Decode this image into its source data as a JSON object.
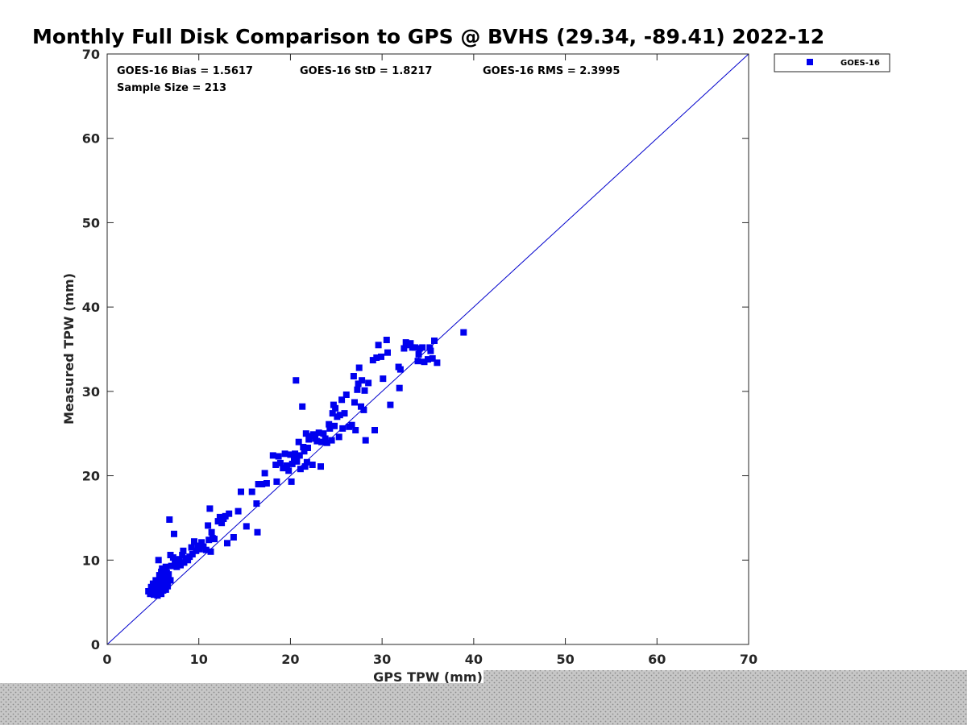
{
  "chart_data": {
    "type": "scatter",
    "title": "Monthly Full Disk Comparison to GPS @ BVHS (29.34, -89.41) 2022-12",
    "xlabel": "GPS TPW (mm)",
    "ylabel": "Measured TPW (mm)",
    "xlim": [
      0,
      70
    ],
    "ylim": [
      0,
      70
    ],
    "x_ticks": [
      "0",
      "10",
      "20",
      "30",
      "40",
      "50",
      "60",
      "70"
    ],
    "y_ticks": [
      "0",
      "10",
      "20",
      "30",
      "40",
      "50",
      "60",
      "70"
    ],
    "grid": false,
    "legend": {
      "placement": "top-right-outside",
      "entries": [
        "GOES-16"
      ]
    },
    "stats": {
      "bias": "GOES-16 Bias = 1.5617",
      "std": "GOES-16 StD = 1.8217",
      "rms": "GOES-16 RMS = 2.3995",
      "sample_size": "Sample Size = 213"
    },
    "reference_line": {
      "from": [
        0,
        0
      ],
      "to": [
        70,
        70
      ]
    },
    "colors": {
      "series": "#0000ee",
      "reference_line": "#0000cc",
      "axes": "#262626"
    },
    "series": [
      {
        "name": "GOES-16",
        "points": [
          [
            4.5,
            6.3
          ],
          [
            4.7,
            6.0
          ],
          [
            4.8,
            6.8
          ],
          [
            4.9,
            6.5
          ],
          [
            5.0,
            7.2
          ],
          [
            5.1,
            5.9
          ],
          [
            5.2,
            6.4
          ],
          [
            5.3,
            7.6
          ],
          [
            5.3,
            6.1
          ],
          [
            5.4,
            6.8
          ],
          [
            5.5,
            7.0
          ],
          [
            5.5,
            5.8
          ],
          [
            5.6,
            10.0
          ],
          [
            5.6,
            6.2
          ],
          [
            5.7,
            7.4
          ],
          [
            5.7,
            8.2
          ],
          [
            5.8,
            6.6
          ],
          [
            5.8,
            7.9
          ],
          [
            5.9,
            8.6
          ],
          [
            5.9,
            6.0
          ],
          [
            6.0,
            7.1
          ],
          [
            6.0,
            9.0
          ],
          [
            6.1,
            6.4
          ],
          [
            6.1,
            8.0
          ],
          [
            6.2,
            7.6
          ],
          [
            6.2,
            6.8
          ],
          [
            6.3,
            8.8
          ],
          [
            6.3,
            7.3
          ],
          [
            6.4,
            6.5
          ],
          [
            6.4,
            9.2
          ],
          [
            6.5,
            7.9
          ],
          [
            6.5,
            8.5
          ],
          [
            6.6,
            6.9
          ],
          [
            6.6,
            7.5
          ],
          [
            6.7,
            8.3
          ],
          [
            6.8,
            14.8
          ],
          [
            6.9,
            10.6
          ],
          [
            6.9,
            7.6
          ],
          [
            7.0,
            9.3
          ],
          [
            7.2,
            10.3
          ],
          [
            7.3,
            13.1
          ],
          [
            7.4,
            9.6
          ],
          [
            7.5,
            10.0
          ],
          [
            7.6,
            9.2
          ],
          [
            7.8,
            9.8
          ],
          [
            7.9,
            10.1
          ],
          [
            8.0,
            9.4
          ],
          [
            8.2,
            10.6
          ],
          [
            8.3,
            11.1
          ],
          [
            8.4,
            9.7
          ],
          [
            8.6,
            10.2
          ],
          [
            8.8,
            10.0
          ],
          [
            9.0,
            10.4
          ],
          [
            9.2,
            11.5
          ],
          [
            9.3,
            10.7
          ],
          [
            9.5,
            12.2
          ],
          [
            9.7,
            11.1
          ],
          [
            9.9,
            11.7
          ],
          [
            10.1,
            11.3
          ],
          [
            10.3,
            12.1
          ],
          [
            10.5,
            11.6
          ],
          [
            10.8,
            11.2
          ],
          [
            11.0,
            14.1
          ],
          [
            11.1,
            12.4
          ],
          [
            11.2,
            16.1
          ],
          [
            11.3,
            11.0
          ],
          [
            11.4,
            13.3
          ],
          [
            11.5,
            12.6
          ],
          [
            11.7,
            12.5
          ],
          [
            12.1,
            14.6
          ],
          [
            12.3,
            15.1
          ],
          [
            12.5,
            14.4
          ],
          [
            12.7,
            14.9
          ],
          [
            12.9,
            15.2
          ],
          [
            13.1,
            12.0
          ],
          [
            13.3,
            15.5
          ],
          [
            13.8,
            12.7
          ],
          [
            14.3,
            15.8
          ],
          [
            14.6,
            18.1
          ],
          [
            15.2,
            14.0
          ],
          [
            15.8,
            18.1
          ],
          [
            16.3,
            16.7
          ],
          [
            16.4,
            13.3
          ],
          [
            16.5,
            19.0
          ],
          [
            16.9,
            19.0
          ],
          [
            17.2,
            20.3
          ],
          [
            17.4,
            19.1
          ],
          [
            18.1,
            22.4
          ],
          [
            18.4,
            21.3
          ],
          [
            18.5,
            19.3
          ],
          [
            18.7,
            22.3
          ],
          [
            18.9,
            21.5
          ],
          [
            19.2,
            20.9
          ],
          [
            19.4,
            22.6
          ],
          [
            19.6,
            21.2
          ],
          [
            19.8,
            20.6
          ],
          [
            20.0,
            22.5
          ],
          [
            20.1,
            19.3
          ],
          [
            20.2,
            21.4
          ],
          [
            20.4,
            22.0
          ],
          [
            20.5,
            22.6
          ],
          [
            20.6,
            31.3
          ],
          [
            20.7,
            21.7
          ],
          [
            20.9,
            24.0
          ],
          [
            21.0,
            22.4
          ],
          [
            21.1,
            20.8
          ],
          [
            21.3,
            28.2
          ],
          [
            21.4,
            23.4
          ],
          [
            21.5,
            22.9
          ],
          [
            21.6,
            21.1
          ],
          [
            21.7,
            25.0
          ],
          [
            21.8,
            21.6
          ],
          [
            21.9,
            23.3
          ],
          [
            22.0,
            24.3
          ],
          [
            22.2,
            24.7
          ],
          [
            22.4,
            21.3
          ],
          [
            22.5,
            24.9
          ],
          [
            22.7,
            24.4
          ],
          [
            22.9,
            24.1
          ],
          [
            23.1,
            25.1
          ],
          [
            23.3,
            21.1
          ],
          [
            23.4,
            24.0
          ],
          [
            23.6,
            25.0
          ],
          [
            23.8,
            24.4
          ],
          [
            24.0,
            23.9
          ],
          [
            24.2,
            26.1
          ],
          [
            24.3,
            25.6
          ],
          [
            24.5,
            24.2
          ],
          [
            24.6,
            27.4
          ],
          [
            24.7,
            28.4
          ],
          [
            24.8,
            25.9
          ],
          [
            24.9,
            28.0
          ],
          [
            25.1,
            27.0
          ],
          [
            25.3,
            24.6
          ],
          [
            25.4,
            27.2
          ],
          [
            25.6,
            29.0
          ],
          [
            25.7,
            25.6
          ],
          [
            25.9,
            27.4
          ],
          [
            26.1,
            29.6
          ],
          [
            26.4,
            25.8
          ],
          [
            26.7,
            26.0
          ],
          [
            26.9,
            31.8
          ],
          [
            27.0,
            28.7
          ],
          [
            27.1,
            25.4
          ],
          [
            27.3,
            30.2
          ],
          [
            27.4,
            30.9
          ],
          [
            27.5,
            32.8
          ],
          [
            27.7,
            28.2
          ],
          [
            27.8,
            31.3
          ],
          [
            28.0,
            27.8
          ],
          [
            28.1,
            30.1
          ],
          [
            28.2,
            24.2
          ],
          [
            28.5,
            31.0
          ],
          [
            29.0,
            33.7
          ],
          [
            29.2,
            25.4
          ],
          [
            29.4,
            34.0
          ],
          [
            29.6,
            35.5
          ],
          [
            29.9,
            34.1
          ],
          [
            30.1,
            31.5
          ],
          [
            30.5,
            36.1
          ],
          [
            30.6,
            34.6
          ],
          [
            30.9,
            28.4
          ],
          [
            31.8,
            32.9
          ],
          [
            31.9,
            30.4
          ],
          [
            32.0,
            32.6
          ],
          [
            32.4,
            35.1
          ],
          [
            32.6,
            35.8
          ],
          [
            32.8,
            35.5
          ],
          [
            33.1,
            35.7
          ],
          [
            33.3,
            35.2
          ],
          [
            33.6,
            35.2
          ],
          [
            33.9,
            33.6
          ],
          [
            34.0,
            34.4
          ],
          [
            34.1,
            35.1
          ],
          [
            34.4,
            35.2
          ],
          [
            34.6,
            33.5
          ],
          [
            35.0,
            33.8
          ],
          [
            35.2,
            35.2
          ],
          [
            35.3,
            34.8
          ],
          [
            35.5,
            33.9
          ],
          [
            35.7,
            36.0
          ],
          [
            36.0,
            33.4
          ],
          [
            38.9,
            37.0
          ]
        ]
      }
    ]
  }
}
